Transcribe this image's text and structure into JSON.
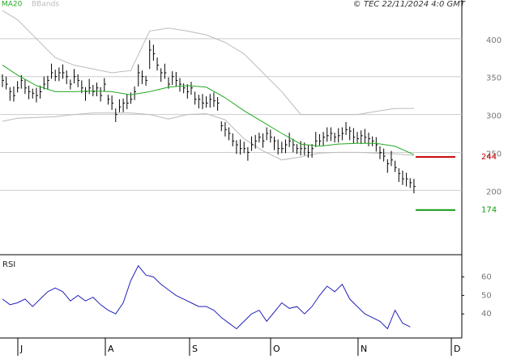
{
  "chart_data": [
    {
      "type": "ohlc",
      "annotation": "© TEC 22/11/2024 4:0 GMT",
      "xlim": [
        -0.64,
        121.68
      ],
      "ylim": [
        115,
        451
      ],
      "yticks": [
        200,
        250,
        300,
        350,
        400
      ],
      "grid": true,
      "bars": {
        "color": "#000000",
        "high": [
          353,
          350,
          336,
          337,
          344,
          352,
          346,
          338,
          334,
          335,
          338,
          350,
          351,
          367,
          359,
          362,
          366,
          358,
          346,
          360,
          353,
          345,
          336,
          347,
          339,
          342,
          336,
          348,
          326,
          325,
          308,
          320,
          321,
          327,
          329,
          337,
          366,
          358,
          351,
          398,
          392,
          375,
          361,
          367,
          349,
          357,
          356,
          348,
          341,
          340,
          343,
          330,
          326,
          327,
          324,
          327,
          329,
          323,
          291,
          290,
          283,
          275,
          266,
          267,
          264,
          257,
          271,
          273,
          276,
          275,
          283,
          280,
          271,
          267,
          264,
          267,
          276,
          268,
          261,
          265,
          263,
          260,
          261,
          277,
          274,
          277,
          283,
          283,
          276,
          282,
          283,
          290,
          284,
          282,
          277,
          279,
          281,
          276,
          271,
          270,
          258,
          255,
          241,
          252,
          239,
          229,
          226,
          223,
          216,
          215
        ],
        "low": [
          336,
          333,
          318,
          317,
          329,
          334,
          327,
          320,
          321,
          316,
          321,
          333,
          333,
          347,
          344,
          344,
          347,
          340,
          333,
          341,
          336,
          328,
          318,
          327,
          324,
          324,
          317,
          330,
          313,
          306,
          290,
          303,
          303,
          307,
          314,
          319,
          337,
          340,
          338,
          360,
          371,
          358,
          343,
          347,
          334,
          339,
          337,
          330,
          328,
          321,
          326,
          313,
          308,
          307,
          309,
          309,
          310,
          305,
          278,
          271,
          266,
          258,
          248,
          247,
          249,
          239,
          252,
          255,
          263,
          256,
          266,
          263,
          253,
          247,
          249,
          249,
          257,
          250,
          248,
          246,
          246,
          243,
          243,
          257,
          259,
          259,
          264,
          265,
          263,
          263,
          266,
          273,
          266,
          262,
          262,
          261,
          262,
          258,
          258,
          251,
          241,
          238,
          223,
          232,
          224,
          211,
          207,
          205,
          203,
          196
        ],
        "close": [
          345,
          340,
          330,
          325,
          335,
          345,
          335,
          330,
          328,
          325,
          330,
          340,
          345,
          355,
          350,
          355,
          355,
          350,
          340,
          350,
          345,
          335,
          330,
          335,
          330,
          335,
          325,
          340,
          320,
          315,
          300,
          310,
          315,
          315,
          320,
          330,
          355,
          350,
          345,
          385,
          380,
          365,
          355,
          355,
          340,
          350,
          345,
          340,
          335,
          330,
          335,
          320,
          320,
          315,
          315,
          320,
          318,
          315,
          285,
          280,
          275,
          265,
          260,
          255,
          255,
          250,
          260,
          265,
          270,
          265,
          275,
          270,
          265,
          255,
          255,
          260,
          265,
          260,
          255,
          255,
          255,
          250,
          255,
          265,
          265,
          270,
          272,
          275,
          270,
          272,
          275,
          280,
          278,
          270,
          268,
          272,
          270,
          268,
          265,
          260,
          250,
          245,
          235,
          240,
          230,
          222,
          215,
          215,
          210,
          205
        ]
      },
      "ma": {
        "name": "MA20",
        "color": "#22aa22",
        "x": [
          0,
          4,
          9,
          14,
          19,
          24,
          29,
          34,
          39,
          44,
          49,
          54,
          59,
          64,
          69,
          74,
          79,
          84,
          89,
          94,
          99,
          104,
          109
        ],
        "values": [
          365,
          352,
          338,
          330,
          330,
          331,
          330,
          326,
          330,
          336,
          338,
          336,
          322,
          305,
          290,
          275,
          261,
          258,
          261,
          262,
          262,
          258,
          247
        ]
      },
      "bbands": {
        "name": "BBands",
        "color": "#bbbbbb",
        "x": [
          0,
          4,
          9,
          14,
          19,
          24,
          29,
          34,
          39,
          44,
          49,
          54,
          59,
          64,
          69,
          74,
          79,
          84,
          89,
          94,
          99,
          104,
          109
        ],
        "upper": [
          437,
          425,
          400,
          375,
          365,
          360,
          355,
          358,
          410,
          414,
          410,
          405,
          395,
          380,
          355,
          330,
          300,
          300,
          300,
          300,
          304,
          308,
          308
        ],
        "lower": [
          291,
          295,
          296,
          297,
          300,
          302,
          302,
          302,
          300,
          294,
          300,
          301,
          293,
          268,
          252,
          240,
          244,
          249,
          250,
          250,
          249,
          248,
          246
        ]
      },
      "levels": [
        {
          "value": 244,
          "color": "#cc0000"
        },
        {
          "value": 174,
          "color": "#119911"
        }
      ]
    },
    {
      "type": "line",
      "title": "RSI",
      "xlim": [
        -0.64,
        121.68
      ],
      "ylim": [
        27,
        72
      ],
      "yticks": [
        40,
        50,
        60
      ],
      "xticks": [
        {
          "value": 4.08,
          "label": "J"
        },
        {
          "value": 27.26,
          "label": "A"
        },
        {
          "value": 49.57,
          "label": "S"
        },
        {
          "value": 71.03,
          "label": "O"
        },
        {
          "value": 94.2,
          "label": "N"
        },
        {
          "value": 118.9,
          "label": "D"
        }
      ],
      "color": "#2222bb",
      "x": [
        0,
        2,
        4,
        6,
        8,
        10,
        12,
        14,
        16,
        18,
        20,
        22,
        24,
        26,
        28,
        30,
        32,
        34,
        36,
        38,
        40,
        42,
        44,
        46,
        48,
        50,
        52,
        54,
        56,
        58,
        60,
        62,
        64,
        66,
        68,
        70,
        72,
        74,
        76,
        78,
        80,
        82,
        84,
        86,
        88,
        90,
        92,
        94,
        96,
        98,
        100,
        102,
        104,
        106,
        108
      ],
      "values": [
        48,
        45,
        46,
        48,
        44,
        48,
        52,
        54,
        52,
        47,
        50,
        47,
        49,
        45,
        42,
        40,
        46,
        58,
        66,
        61,
        60,
        56,
        53,
        50,
        48,
        46,
        44,
        44,
        42,
        38,
        35,
        32,
        36,
        40,
        42,
        36,
        41,
        46,
        43,
        44,
        40,
        44,
        50,
        55,
        52,
        56,
        48,
        44,
        40,
        38,
        36,
        32,
        42,
        35,
        33
      ]
    }
  ]
}
